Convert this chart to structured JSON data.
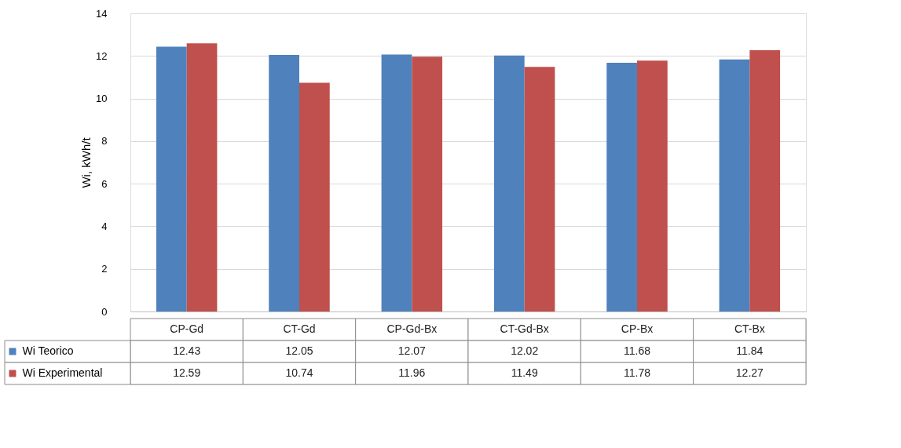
{
  "chart_data": {
    "type": "bar",
    "ylabel": "Wi, kWh/t",
    "categories": [
      "CP-Gd",
      "CT-Gd",
      "CP-Gd-Bx",
      "CT-Gd-Bx",
      "CP-Bx",
      "CT-Bx"
    ],
    "series": [
      {
        "name": "Wi Teorico",
        "color": "#4f81bd",
        "values": [
          12.43,
          12.05,
          12.07,
          12.02,
          11.68,
          11.84
        ]
      },
      {
        "name": "Wi Experimental",
        "color": "#c0504d",
        "values": [
          12.59,
          10.74,
          11.96,
          11.49,
          11.78,
          12.27
        ]
      }
    ],
    "ylim": [
      0,
      14
    ],
    "yticks": [
      0,
      2,
      4,
      6,
      8,
      10,
      12,
      14
    ],
    "grid": "y",
    "legend": "bottom left",
    "data_labels": true
  }
}
